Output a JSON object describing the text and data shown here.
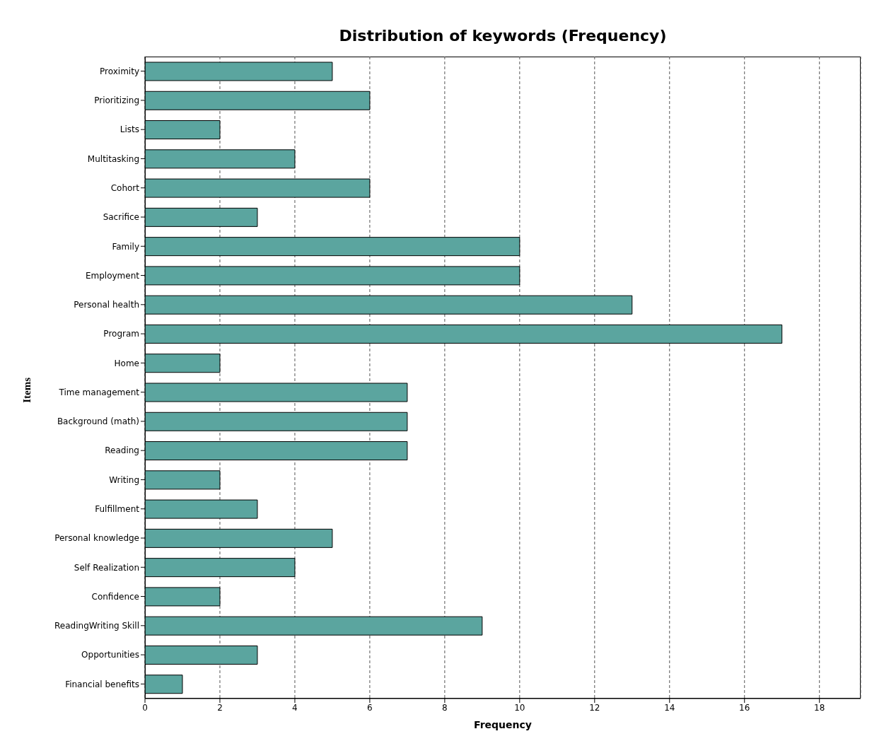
{
  "chart_data": {
    "type": "bar",
    "orientation": "horizontal",
    "title": "Distribution of keywords (Frequency)",
    "xlabel": "Frequency",
    "ylabel": "Items",
    "categories": [
      "Proximity",
      "Prioritizing",
      "Lists",
      "Multitasking",
      "Cohort",
      "Sacrifice",
      "Family",
      "Employment",
      "Personal health",
      "Program",
      "Home",
      "Time management",
      "Background (math)",
      "Reading",
      "Writing",
      "Fulfillment",
      "Personal knowledge",
      "Self Realization",
      "Confidence",
      "ReadingWriting Skill",
      "Opportunities",
      "Financial benefits"
    ],
    "values": [
      5,
      6,
      2,
      4,
      6,
      3,
      10,
      10,
      13,
      17,
      2,
      7,
      7,
      7,
      2,
      3,
      5,
      4,
      2,
      9,
      3,
      1
    ],
    "color": "#5ba59f",
    "xlim": [
      0,
      19.1
    ],
    "xticks": [
      0,
      2,
      4,
      6,
      8,
      10,
      12,
      14,
      16,
      18
    ],
    "grid": "x"
  }
}
